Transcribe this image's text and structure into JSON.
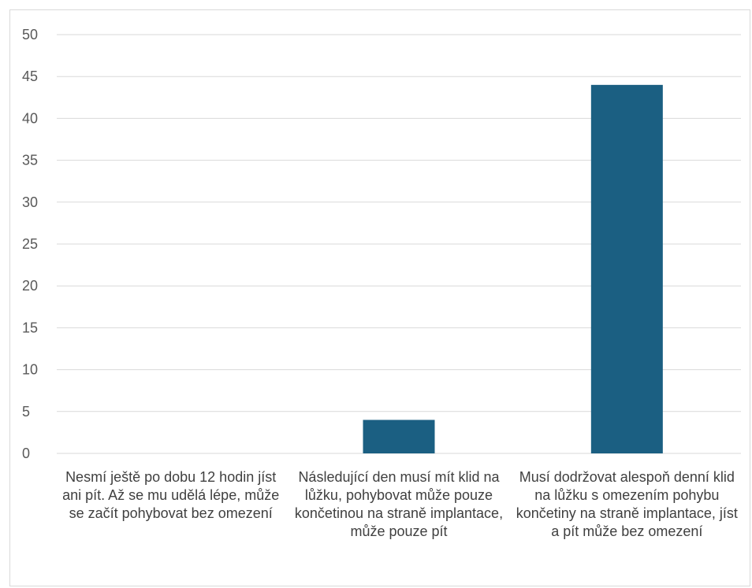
{
  "chart_data": {
    "type": "bar",
    "title": "",
    "xlabel": "",
    "ylabel": "",
    "categories": [
      "Nesmí ještě po dobu 12 hodin jíst ani pít. Až se mu udělá lépe, může se začít pohybovat bez omezení",
      "Následující den musí mít klid na lůžku, pohybovat může pouze končetinou na straně implantace, může pouze pít",
      "Musí dodržovat alespoň denní klid na lůžku s omezením pohybu končetiny na straně implantace, jíst a pít může bez omezení"
    ],
    "values": [
      0,
      4,
      44
    ],
    "ylim": [
      0,
      50
    ],
    "yticks": [
      0,
      5,
      10,
      15,
      20,
      25,
      30,
      35,
      40,
      45,
      50
    ],
    "grid": true,
    "legend": "none",
    "bar_color": "#1b5f82",
    "grid_color": "#d9d9d9"
  }
}
